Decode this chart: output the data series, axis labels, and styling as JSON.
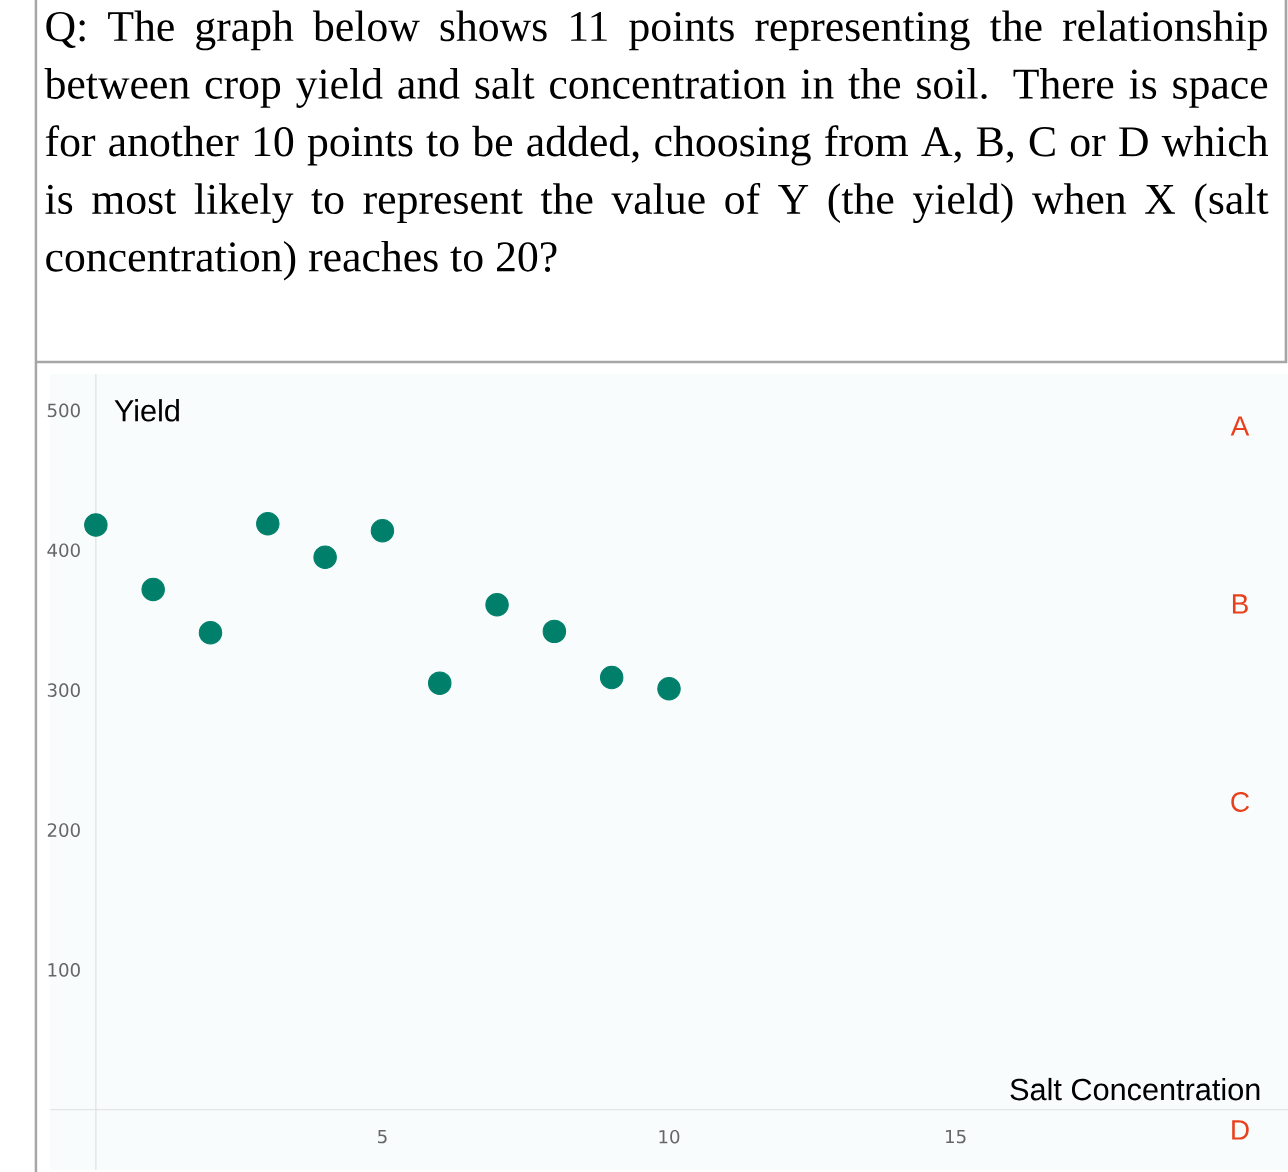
{
  "chart_data": {
    "type": "scatter",
    "title": "Q: The graph below shows 11 points representing the relationship between crop yield and salt concentration in the soil. There is space for another 10 points to be added, choosing from A, B, C or D which is most likely to represent the value of Y (the yield) when X (salt concentration) reaches to 20?",
    "xlabel": "Salt Concentration",
    "ylabel": "Yield",
    "x": [
      0,
      1,
      2,
      3,
      4,
      5,
      6,
      7,
      8,
      9,
      10
    ],
    "series": [
      {
        "color": "#00806b",
        "values": [
          418,
          372,
          341,
          419,
          395,
          414,
          305,
          361,
          342,
          309,
          301
        ]
      }
    ],
    "grid": false,
    "xlim": [
      -0.8,
      20.8
    ],
    "xticks": [
      5,
      10,
      15
    ],
    "ylim": [
      -43,
      526
    ],
    "yticks": [
      100,
      200,
      300,
      400,
      500
    ],
    "annotations": [
      "A",
      "B",
      "C",
      "D"
    ]
  }
}
